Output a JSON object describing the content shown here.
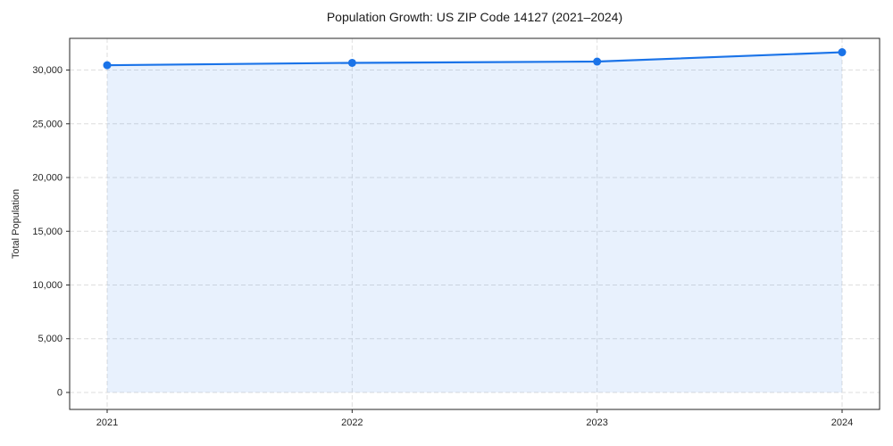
{
  "figure": {
    "title": "Population Growth: US ZIP Code 14127 (2021–2024)",
    "ylabel": "Total Population"
  },
  "chart_data": {
    "type": "line",
    "title": "Population Growth: US ZIP Code 14127 (2021–2024)",
    "xlabel": "",
    "ylabel": "Total Population",
    "x": [
      2021,
      2022,
      2023,
      2024
    ],
    "xtick_labels": [
      "2021",
      "2022",
      "2023",
      "2024"
    ],
    "series": [
      {
        "name": "Total Population",
        "values": [
          30450,
          30670,
          30790,
          31660
        ]
      }
    ],
    "yticks": [
      0,
      5000,
      10000,
      15000,
      20000,
      25000,
      30000
    ],
    "ytick_labels": [
      "0",
      "5,000",
      "10,000",
      "15,000",
      "20,000",
      "25,000",
      "30,000"
    ],
    "ylim": [
      -1580,
      32950
    ],
    "grid": true,
    "grid_style": "dashed",
    "grid_vertical": true,
    "legend": "none",
    "marker": "circle",
    "area_fill": true,
    "colors": {
      "line": "#1a73e8",
      "marker": "#1a73e8",
      "area_fill": "rgba(26,115,232,0.10)",
      "grid": "#dedede",
      "spine": "#262626",
      "tick_text": "#262626",
      "title_text": "#1a1a1a",
      "background": "#ffffff"
    }
  }
}
